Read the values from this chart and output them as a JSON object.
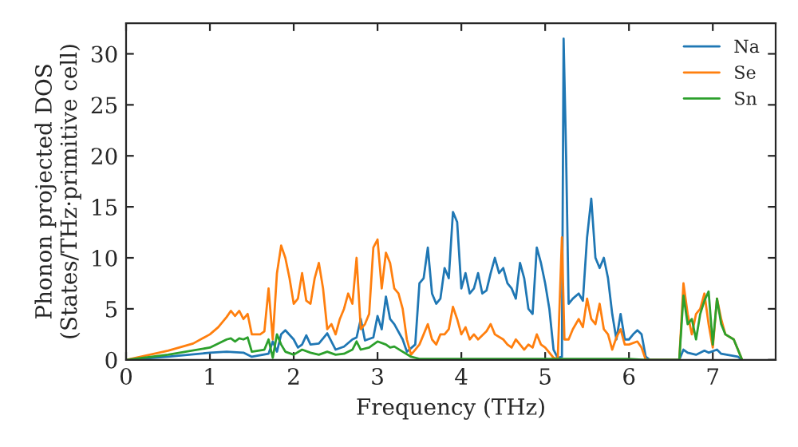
{
  "chart_data": {
    "type": "line",
    "xlabel": "Frequency (THz)",
    "ylabel": "Phonon projected DOS\n(States/THz·primitive cell)",
    "xlim": [
      0,
      7.75
    ],
    "ylim": [
      0,
      33
    ],
    "xticks": [
      0,
      1,
      2,
      3,
      4,
      5,
      6,
      7
    ],
    "yticks": [
      0,
      5,
      10,
      15,
      20,
      25,
      30
    ],
    "grid": false,
    "legend": "top right",
    "series": [
      {
        "name": "Na",
        "color": "#1f77b4",
        "x": [
          0,
          0.5,
          1.0,
          1.2,
          1.4,
          1.5,
          1.7,
          1.75,
          1.8,
          1.85,
          1.9,
          2.0,
          2.05,
          2.1,
          2.15,
          2.2,
          2.3,
          2.4,
          2.5,
          2.6,
          2.7,
          2.75,
          2.8,
          2.85,
          2.95,
          3.0,
          3.05,
          3.1,
          3.15,
          3.2,
          3.3,
          3.35,
          3.45,
          3.5,
          3.55,
          3.6,
          3.65,
          3.7,
          3.75,
          3.8,
          3.85,
          3.9,
          3.95,
          4.0,
          4.05,
          4.1,
          4.15,
          4.2,
          4.25,
          4.3,
          4.35,
          4.4,
          4.45,
          4.5,
          4.55,
          4.6,
          4.65,
          4.7,
          4.75,
          4.8,
          4.85,
          4.9,
          4.95,
          5.0,
          5.05,
          5.1,
          5.15,
          5.2,
          5.22,
          5.25,
          5.28,
          5.33,
          5.4,
          5.45,
          5.5,
          5.55,
          5.6,
          5.65,
          5.7,
          5.75,
          5.8,
          5.85,
          5.9,
          5.95,
          6.0,
          6.05,
          6.1,
          6.15,
          6.2,
          6.25,
          6.6,
          6.65,
          6.7,
          6.8,
          6.9,
          6.95,
          7.05,
          7.1,
          7.3,
          7.35
        ],
        "values": [
          0,
          0.3,
          0.7,
          0.8,
          0.7,
          0.3,
          0.6,
          1.8,
          0.8,
          2.5,
          2.9,
          2.0,
          1.2,
          1.5,
          2.4,
          1.5,
          1.6,
          2.6,
          1.0,
          1.3,
          2.0,
          2.2,
          4.0,
          1.9,
          2.2,
          4.3,
          3.0,
          6.2,
          4.0,
          3.5,
          2.0,
          0.8,
          1.5,
          7.5,
          8.0,
          11.0,
          6.5,
          5.5,
          6.0,
          9.0,
          8.0,
          14.5,
          13.5,
          7.0,
          8.5,
          6.5,
          7.0,
          8.5,
          6.5,
          6.8,
          8.5,
          10.0,
          8.5,
          9.0,
          7.5,
          7.0,
          6.0,
          9.5,
          8.0,
          5.0,
          4.5,
          11.0,
          9.5,
          7.5,
          5.0,
          1.0,
          0.2,
          0.3,
          31.5,
          20,
          5.5,
          6.0,
          6.5,
          5.8,
          12.0,
          15.8,
          10.0,
          9.0,
          10.0,
          8.0,
          4.5,
          2.0,
          4.5,
          2.0,
          2.0,
          2.5,
          2.9,
          2.5,
          0.3,
          0,
          0,
          1.0,
          0.7,
          0.5,
          0.9,
          0.7,
          1.0,
          0.6,
          0.3,
          0
        ]
      },
      {
        "name": "Se",
        "color": "#ff7f0e",
        "x": [
          0,
          0.5,
          0.8,
          1.0,
          1.1,
          1.2,
          1.25,
          1.3,
          1.35,
          1.4,
          1.45,
          1.5,
          1.6,
          1.65,
          1.7,
          1.75,
          1.8,
          1.85,
          1.9,
          1.95,
          2.0,
          2.05,
          2.1,
          2.15,
          2.2,
          2.25,
          2.3,
          2.35,
          2.4,
          2.45,
          2.5,
          2.55,
          2.6,
          2.65,
          2.7,
          2.75,
          2.8,
          2.85,
          2.9,
          2.95,
          3.0,
          3.05,
          3.1,
          3.15,
          3.2,
          3.25,
          3.3,
          3.35,
          3.4,
          3.45,
          3.5,
          3.55,
          3.6,
          3.65,
          3.7,
          3.75,
          3.8,
          3.85,
          3.9,
          3.95,
          4.0,
          4.05,
          4.1,
          4.15,
          4.2,
          4.3,
          4.35,
          4.4,
          4.5,
          4.55,
          4.6,
          4.65,
          4.7,
          4.75,
          4.8,
          4.85,
          4.9,
          4.95,
          5.0,
          5.1,
          5.15,
          5.2,
          5.23,
          5.28,
          5.33,
          5.4,
          5.45,
          5.5,
          5.55,
          5.6,
          5.65,
          5.7,
          5.75,
          5.8,
          5.85,
          5.9,
          5.95,
          6.0,
          6.1,
          6.15,
          6.2,
          6.6,
          6.65,
          6.7,
          6.75,
          6.8,
          6.85,
          6.9,
          6.95,
          7.0,
          7.05,
          7.1,
          7.15,
          7.25,
          7.35
        ],
        "values": [
          0,
          0.9,
          1.6,
          2.5,
          3.2,
          4.2,
          4.8,
          4.3,
          4.8,
          4.0,
          4.5,
          2.5,
          2.5,
          2.8,
          7.0,
          2.0,
          8.5,
          11.2,
          10.0,
          8.0,
          5.5,
          6.0,
          8.5,
          5.8,
          5.5,
          8.0,
          9.5,
          7.0,
          3.0,
          3.5,
          2.5,
          4.0,
          5.0,
          6.5,
          5.5,
          10.0,
          3.0,
          3.5,
          4.5,
          11.0,
          11.8,
          7.0,
          10.5,
          9.5,
          7.0,
          6.5,
          5.0,
          2.0,
          0.5,
          1.0,
          1.5,
          2.5,
          3.5,
          2.0,
          1.5,
          2.5,
          2.5,
          3.0,
          5.2,
          4.0,
          2.5,
          3.2,
          2.0,
          2.5,
          2.0,
          2.8,
          3.5,
          2.5,
          2.0,
          1.5,
          1.2,
          2.0,
          1.5,
          1.0,
          1.5,
          1.2,
          2.5,
          1.5,
          1.2,
          0.2,
          0.1,
          12.0,
          2.0,
          2.0,
          3.0,
          4.0,
          3.2,
          6.0,
          4.0,
          3.5,
          5.5,
          3.0,
          2.5,
          1.0,
          2.2,
          3.0,
          1.5,
          1.5,
          1.8,
          1.2,
          0,
          0,
          7.5,
          4.5,
          2.5,
          4.5,
          5.0,
          6.5,
          3.5,
          1.2,
          6.0,
          4.0,
          2.5,
          2.0,
          0
        ]
      },
      {
        "name": "Sn",
        "color": "#2ca02c",
        "x": [
          0,
          0.5,
          1.0,
          1.2,
          1.25,
          1.3,
          1.35,
          1.4,
          1.45,
          1.5,
          1.65,
          1.7,
          1.75,
          1.8,
          1.85,
          1.9,
          2.0,
          2.1,
          2.2,
          2.3,
          2.4,
          2.5,
          2.6,
          2.7,
          2.75,
          2.8,
          2.9,
          3.0,
          3.1,
          3.15,
          3.2,
          3.3,
          3.4,
          3.5,
          4.0,
          5.0,
          5.2,
          6.0,
          6.2,
          6.6,
          6.65,
          6.7,
          6.75,
          6.8,
          6.85,
          6.9,
          6.95,
          7.0,
          7.05,
          7.1,
          7.15,
          7.25,
          7.35
        ],
        "values": [
          0,
          0.5,
          1.2,
          2.0,
          2.1,
          1.8,
          2.1,
          2.0,
          2.2,
          0.8,
          1.0,
          2.0,
          0.2,
          2.5,
          1.5,
          0.8,
          0.5,
          1.0,
          0.7,
          0.5,
          0.8,
          0.5,
          0.6,
          1.0,
          1.8,
          1.0,
          1.2,
          1.8,
          1.5,
          1.2,
          1.3,
          0.8,
          0.3,
          0.1,
          0.1,
          0.1,
          0.1,
          0.1,
          0,
          0,
          6.3,
          3.5,
          4.0,
          2.0,
          4.5,
          5.8,
          6.7,
          1.5,
          6.0,
          3.5,
          2.5,
          2.0,
          0
        ]
      }
    ]
  }
}
